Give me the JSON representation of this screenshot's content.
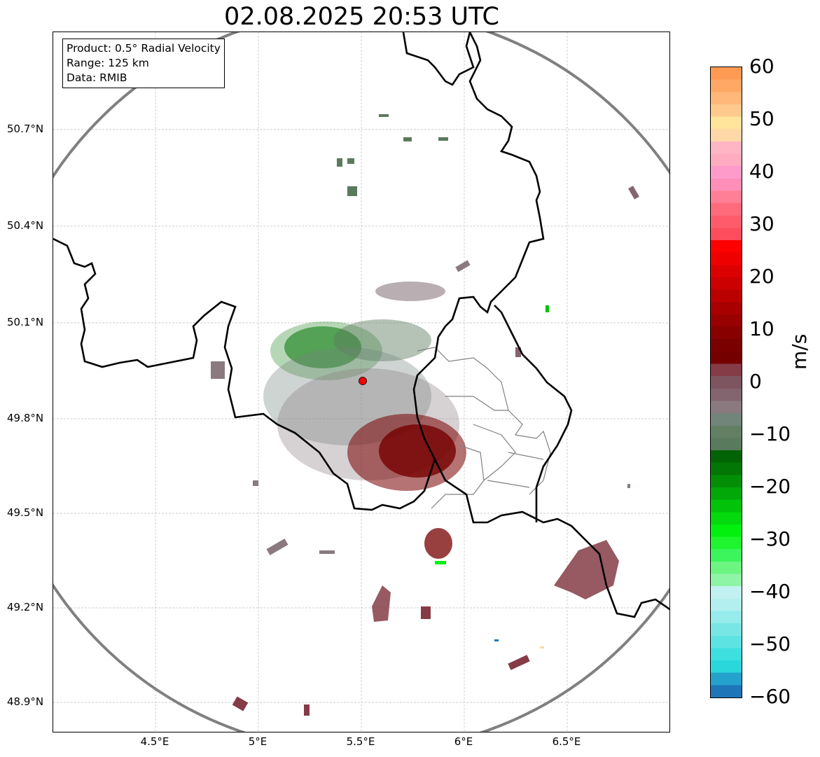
{
  "title": "02.08.2025 20:53 UTC",
  "info": {
    "product": "Product: 0.5° Radial Velocity",
    "range": "Range: 125 km",
    "data": "Data: RMIB"
  },
  "axes": {
    "lat_labels": [
      "50.7°N",
      "50.4°N",
      "50.1°N",
      "49.8°N",
      "49.5°N",
      "49.2°N",
      "48.9°N"
    ],
    "lon_labels": [
      "4.5°E",
      "5°E",
      "5.5°E",
      "6°E",
      "6.5°E"
    ]
  },
  "colorbar": {
    "unit": "m/s",
    "ticks": [
      "60",
      "50",
      "40",
      "30",
      "20",
      "10",
      "0",
      "−10",
      "−20",
      "−30",
      "−40",
      "−50",
      "−60"
    ],
    "min": -60,
    "max": 60,
    "colors": [
      "#1e76b8",
      "#22a2cc",
      "#2ad8dc",
      "#3edfdf",
      "#5ee3e3",
      "#79e6e6",
      "#96ebeb",
      "#b3efef",
      "#c2f1f1",
      "#8ff5a6",
      "#6cf581",
      "#3cf55c",
      "#1ef52e",
      "#03f00f",
      "#03d90c",
      "#03c20a",
      "#02a808",
      "#028f06",
      "#027705",
      "#026304",
      "#5a7a5e",
      "#627f64",
      "#72857a",
      "#8a7a80",
      "#836570",
      "#7d5560",
      "#853c47",
      "#750000",
      "#7a0000",
      "#880000",
      "#990000",
      "#a80000",
      "#bb0000",
      "#cc0000",
      "#dd0000",
      "#ee0000",
      "#ff0000",
      "#ff4d5d",
      "#ff5c6b",
      "#ff6b7a",
      "#ff7f96",
      "#ff8fb8",
      "#ff9bcb",
      "#ffabc0",
      "#ffb5c4",
      "#ffd8a8",
      "#ffe49c",
      "#ffc98d",
      "#ffb87a",
      "#ffa866",
      "#ff9a55"
    ]
  },
  "radar": {
    "site_color": "#ff0000",
    "range_ring_color": "#808080",
    "border_color": "#000000"
  }
}
